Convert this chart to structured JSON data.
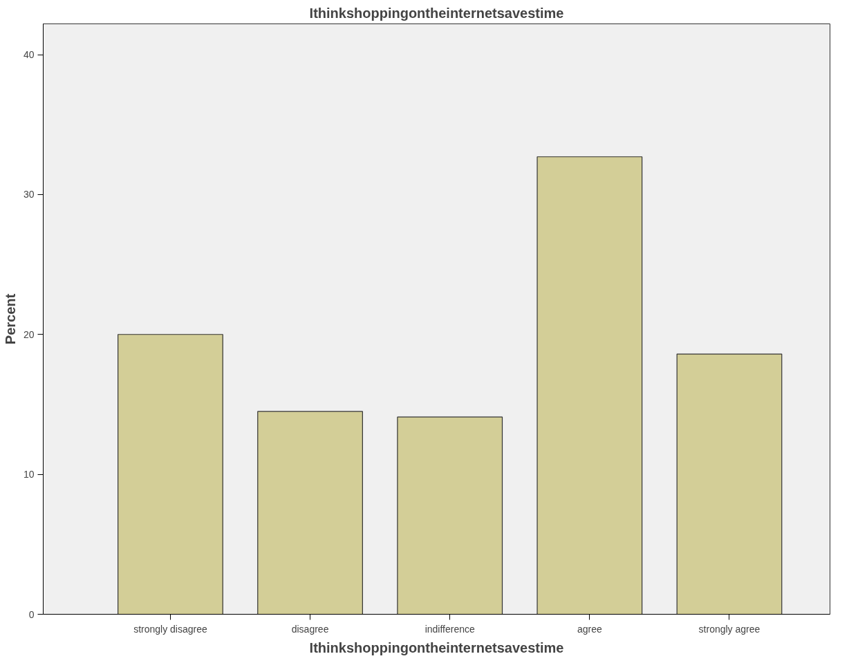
{
  "chart_data": {
    "type": "bar",
    "title": "Ithinkshoppingontheinternetsavestime",
    "xlabel": "Ithinkshoppingontheinternetsavestime",
    "ylabel": "Percent",
    "categories": [
      "strongly disagree",
      "disagree",
      "indifference",
      "agree",
      "strongly agree"
    ],
    "values": [
      20.0,
      14.5,
      14.1,
      32.7,
      18.6
    ],
    "color": "#d3ce97",
    "ylim": [
      0,
      42.2
    ],
    "yticks": [
      0,
      10,
      20,
      30,
      40
    ],
    "grid": false
  }
}
